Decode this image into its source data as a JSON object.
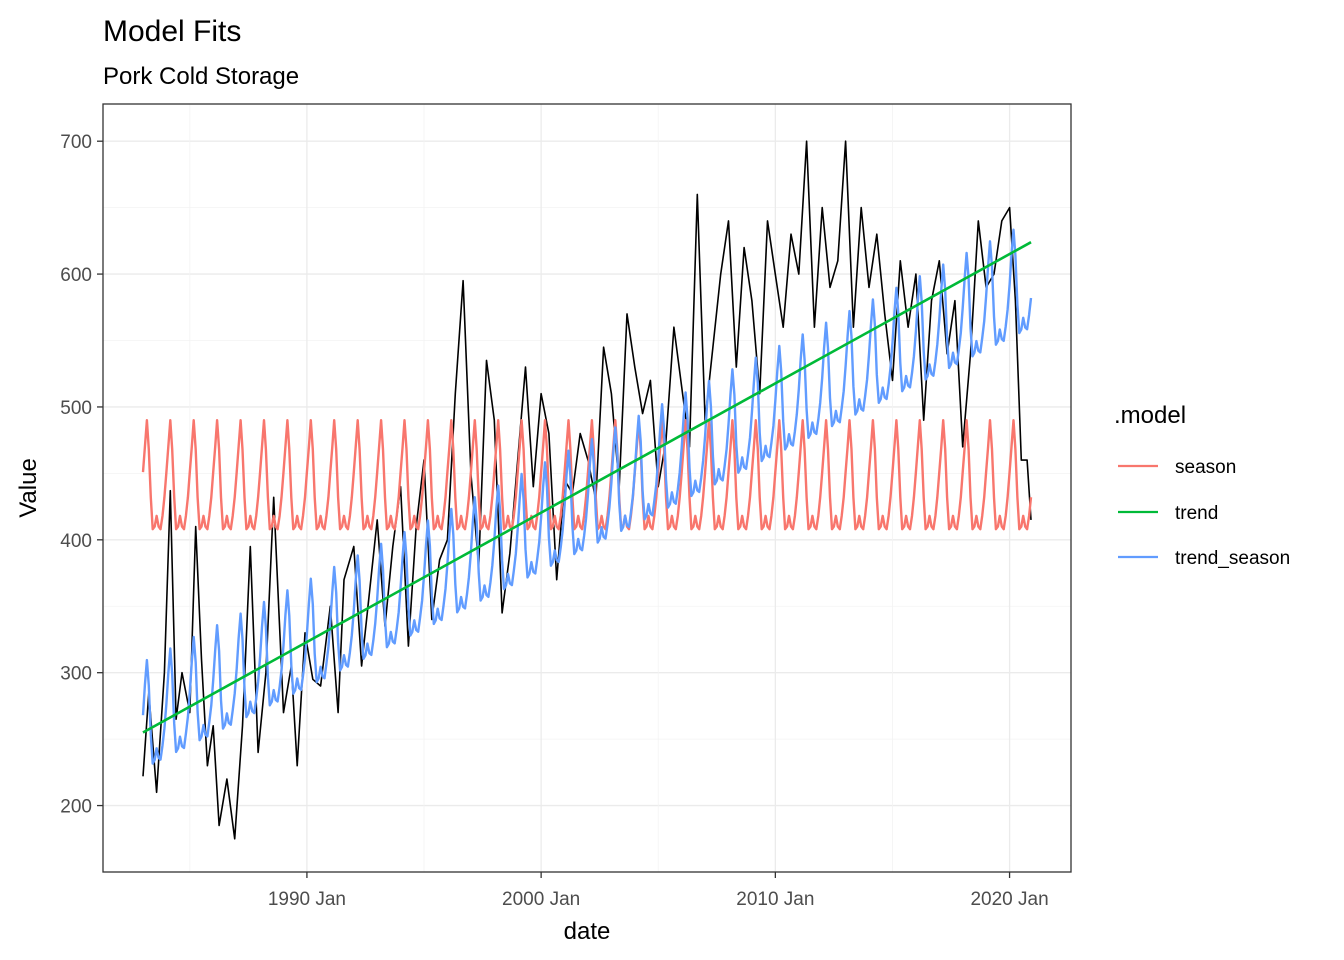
{
  "chart_data": {
    "type": "line",
    "title": "Model Fits",
    "subtitle": "Pork Cold Storage",
    "xlabel": "date",
    "ylabel": "Value",
    "x_range": [
      "1983-01",
      "2020-12"
    ],
    "x_ticks": [
      "1990 Jan",
      "2000 Jan",
      "2010 Jan",
      "2020 Jan"
    ],
    "ylim": [
      150,
      728
    ],
    "y_ticks": [
      200,
      300,
      400,
      500,
      600,
      700
    ],
    "grid": true,
    "legend": {
      "title": ".model",
      "position": "right"
    },
    "actual": {
      "color": "#000000",
      "x": [
        "1983-01",
        "1983-04",
        "1983-08",
        "1983-12",
        "1984-03",
        "1984-06",
        "1984-09",
        "1985-01",
        "1985-04",
        "1985-07",
        "1985-10",
        "1986-01",
        "1986-04",
        "1986-08",
        "1986-12",
        "1987-04",
        "1987-08",
        "1987-12",
        "1988-04",
        "1988-08",
        "1989-01",
        "1989-05",
        "1989-08",
        "1989-12",
        "1990-04",
        "1990-08",
        "1991-01",
        "1991-05",
        "1991-08",
        "1992-01",
        "1992-05",
        "1992-09",
        "1993-01",
        "1993-05",
        "1993-09",
        "1994-01",
        "1994-05",
        "1994-09",
        "1995-01",
        "1995-05",
        "1995-09",
        "1996-01",
        "1996-05",
        "1996-09",
        "1997-01",
        "1997-05",
        "1997-09",
        "1998-01",
        "1998-05",
        "1998-09",
        "1999-01",
        "1999-05",
        "1999-09",
        "2000-01",
        "2000-05",
        "2000-09",
        "2001-01",
        "2001-05",
        "2001-09",
        "2002-01",
        "2002-05",
        "2002-09",
        "2003-01",
        "2003-05",
        "2003-09",
        "2004-01",
        "2004-05",
        "2004-09",
        "2005-01",
        "2005-05",
        "2005-09",
        "2006-01",
        "2006-05",
        "2006-09",
        "2007-01",
        "2007-05",
        "2007-09",
        "2008-01",
        "2008-05",
        "2008-09",
        "2009-01",
        "2009-05",
        "2009-09",
        "2010-01",
        "2010-05",
        "2010-09",
        "2011-01",
        "2011-05",
        "2011-09",
        "2012-01",
        "2012-05",
        "2012-09",
        "2013-01",
        "2013-05",
        "2013-09",
        "2014-01",
        "2014-05",
        "2014-09",
        "2015-01",
        "2015-05",
        "2015-09",
        "2016-01",
        "2016-05",
        "2016-09",
        "2017-01",
        "2017-05",
        "2017-09",
        "2018-01",
        "2018-05",
        "2018-09",
        "2019-01",
        "2019-05",
        "2019-09",
        "2020-01",
        "2020-04",
        "2020-07",
        "2020-10",
        "2020-12"
      ],
      "y": [
        222,
        285,
        210,
        300,
        437,
        265,
        300,
        270,
        410,
        310,
        230,
        260,
        185,
        220,
        175,
        260,
        395,
        240,
        300,
        432,
        270,
        305,
        230,
        330,
        295,
        290,
        350,
        270,
        370,
        395,
        305,
        360,
        415,
        335,
        395,
        440,
        320,
        410,
        460,
        340,
        385,
        400,
        510,
        595,
        450,
        380,
        535,
        490,
        345,
        390,
        460,
        530,
        440,
        510,
        480,
        370,
        445,
        435,
        480,
        460,
        430,
        545,
        510,
        440,
        570,
        530,
        495,
        520,
        440,
        475,
        560,
        515,
        470,
        660,
        490,
        545,
        600,
        640,
        530,
        620,
        580,
        510,
        640,
        600,
        560,
        630,
        600,
        700,
        560,
        650,
        590,
        610,
        700,
        560,
        650,
        590,
        630,
        570,
        520,
        610,
        560,
        600,
        490,
        580,
        610,
        540,
        580,
        470,
        540,
        640,
        590,
        600,
        640,
        650,
        580,
        460,
        460,
        415
      ],
      "note_x_cols": "dates"
    },
    "series": [
      {
        "name": "season",
        "color": "#F8766D",
        "model": "seasonal_only",
        "monthly_profile": [
          451,
          470,
          490,
          468,
          432,
          408,
          410,
          418,
          410,
          408,
          418,
          432
        ]
      },
      {
        "name": "trend",
        "color": "#00BA38",
        "model": "linear",
        "start": {
          "x": "1983-01",
          "y": 255
        },
        "end": {
          "x": "2020-12",
          "y": 624
        }
      },
      {
        "name": "trend_season",
        "color": "#619CFF",
        "model": "linear_plus_seasonal",
        "start": {
          "x": "1983-01",
          "y": 268
        },
        "end": {
          "x": "2020-12",
          "y": 600
        },
        "seasonal_offsets": [
          0,
          22,
          40,
          20,
          -18,
          -40,
          -38,
          -30,
          -38,
          -40,
          -30,
          -18
        ]
      }
    ]
  }
}
